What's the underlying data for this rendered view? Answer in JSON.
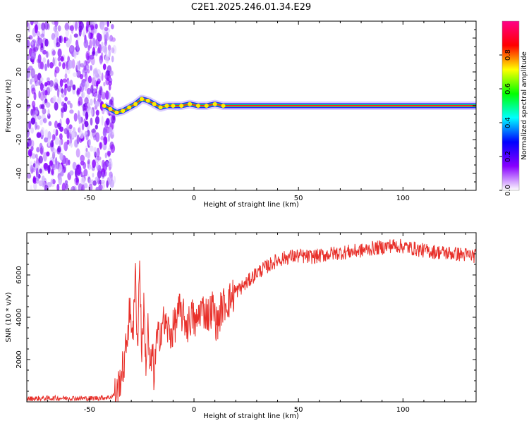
{
  "title": "C2E1.2025.246.01.34.E29",
  "chart_data": [
    {
      "type": "heatmap",
      "xlabel": "Height of straight line (km)",
      "ylabel": "Frequency (Hz)",
      "xlim": [
        -80,
        135
      ],
      "ylim": [
        -50,
        50
      ],
      "xticks": [
        -50,
        0,
        50,
        100
      ],
      "yticks": [
        -40,
        -20,
        0,
        20,
        40
      ],
      "colorbar": {
        "label": "Normalized spectral amplitude",
        "range": [
          0,
          1
        ],
        "ticks": [
          0.0,
          0.2,
          0.4,
          0.6,
          0.8
        ],
        "tick_labels": [
          "0.0",
          "0.2",
          "0.4",
          "0.6",
          "0.8"
        ],
        "colormap": [
          "#ffffff",
          "#8800ff",
          "#0000ff",
          "#00ffff",
          "#00ff00",
          "#ffff00",
          "#ff0000",
          "#ff0088"
        ]
      },
      "noise_region_x": [
        -80,
        -38
      ],
      "ridge": {
        "x": [
          -43,
          -40,
          -37,
          -34,
          -31,
          -28,
          -25,
          -22,
          -19,
          -16,
          -13,
          -10,
          -6,
          -2,
          2,
          6,
          10,
          14,
          20,
          40,
          60,
          80,
          100,
          120,
          135
        ],
        "y": [
          0,
          -2,
          -4,
          -3,
          -1,
          1,
          4,
          3,
          1,
          -1,
          0,
          0,
          0,
          1,
          0,
          0,
          1,
          0,
          0,
          0,
          0,
          0,
          0,
          0,
          0
        ]
      }
    },
    {
      "type": "line",
      "xlabel": "Height of straight line (km)",
      "ylabel": "SNR (10 * v/v)",
      "xlim": [
        -80,
        135
      ],
      "ylim": [
        0,
        8000
      ],
      "xticks": [
        -50,
        0,
        50,
        100
      ],
      "yticks": [
        2000,
        4000,
        6000
      ],
      "series": [
        {
          "color": "#e8302a",
          "x": [
            -80,
            -70,
            -60,
            -50,
            -40,
            -37,
            -35,
            -33,
            -31,
            -29,
            -28,
            -27,
            -26,
            -25,
            -24,
            -23,
            -22,
            -21,
            -20,
            -19,
            -18,
            -17,
            -15,
            -13,
            -11,
            -9,
            -7,
            -5,
            -3,
            -1,
            1,
            3,
            5,
            7,
            9,
            11,
            13,
            15,
            17,
            20,
            25,
            30,
            35,
            40,
            45,
            50,
            55,
            60,
            65,
            70,
            75,
            80,
            85,
            90,
            95,
            100,
            105,
            110,
            115,
            120,
            125,
            130,
            135
          ],
          "y": [
            150,
            170,
            180,
            160,
            220,
            400,
            1200,
            2000,
            4200,
            3500,
            6000,
            2500,
            6800,
            2200,
            4500,
            1800,
            3500,
            1200,
            2400,
            1100,
            2800,
            3000,
            3800,
            3500,
            3200,
            3700,
            4300,
            4000,
            3600,
            4100,
            3600,
            4400,
            4300,
            4100,
            4500,
            3600,
            4400,
            4700,
            4800,
            5200,
            5600,
            6100,
            6400,
            6700,
            6850,
            6900,
            6850,
            6900,
            7000,
            7050,
            7100,
            7150,
            7250,
            7300,
            7400,
            7350,
            7250,
            7150,
            7100,
            7050,
            7000,
            6950,
            6900
          ]
        }
      ]
    }
  ]
}
